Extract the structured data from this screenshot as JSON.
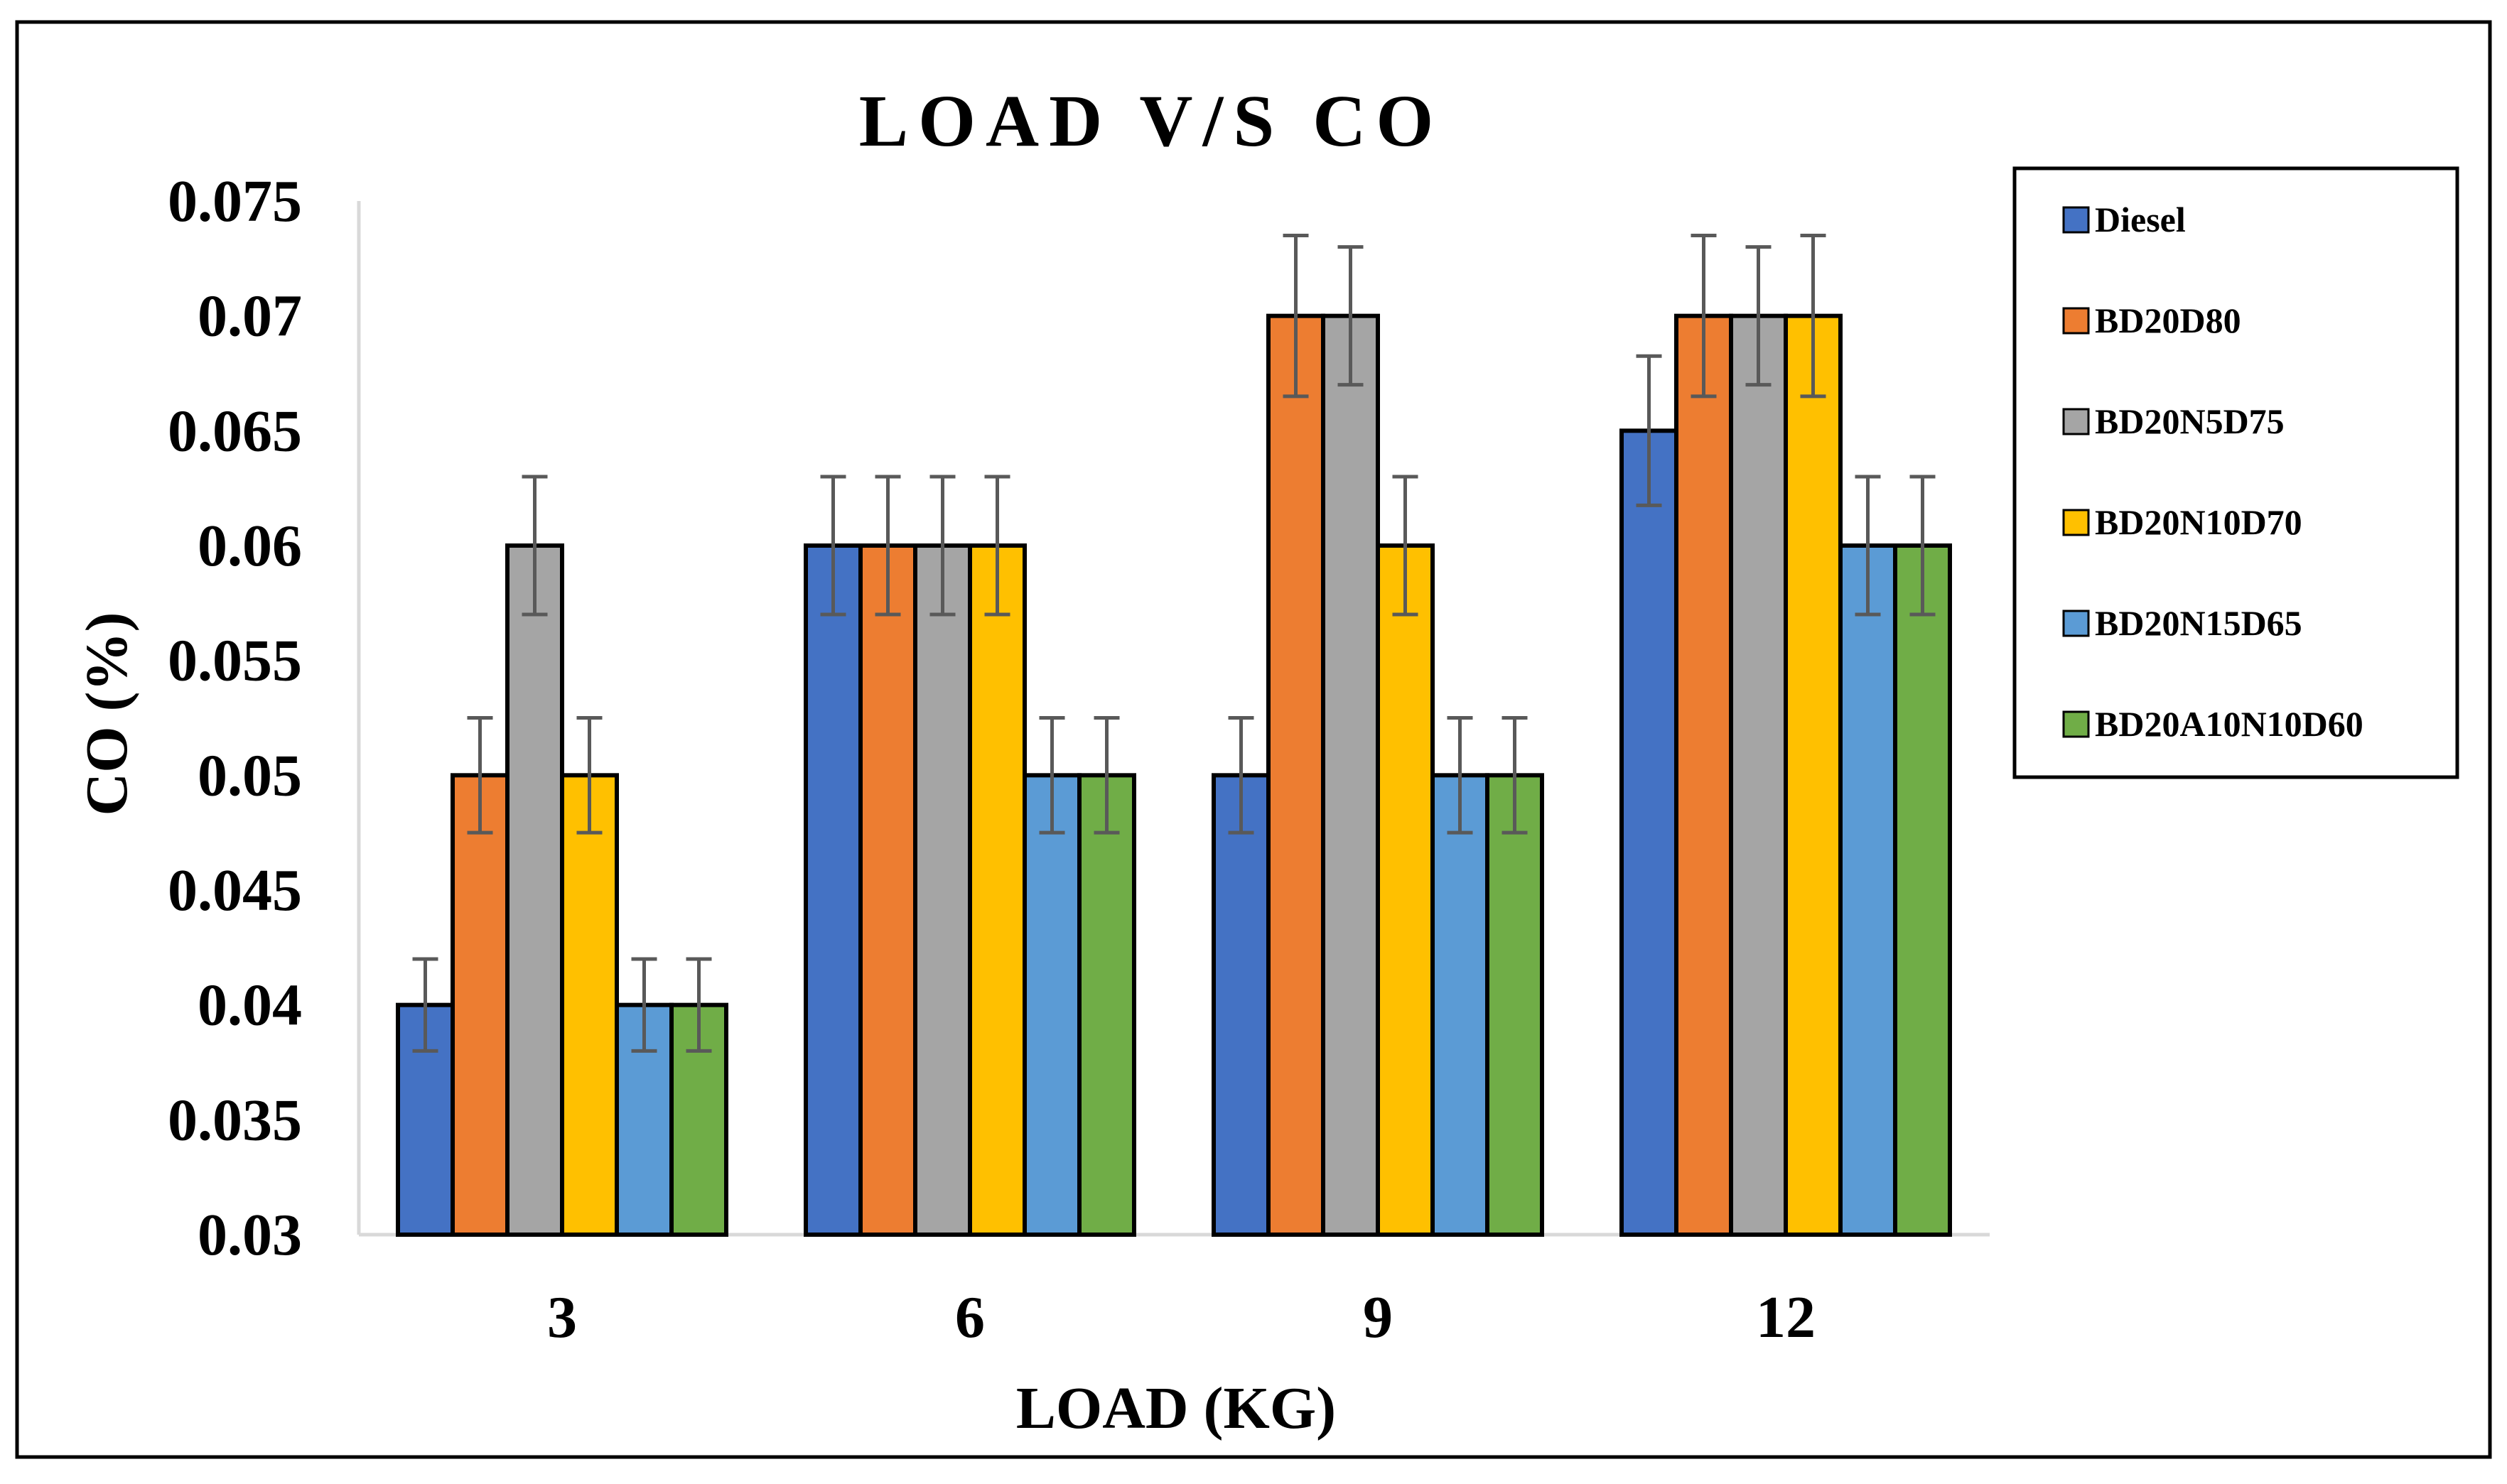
{
  "chart_data": {
    "type": "bar",
    "title": "LOAD V/S CO",
    "xlabel": "LOAD (KG)",
    "ylabel": "CO (%)",
    "ylim": [
      0.03,
      0.075
    ],
    "yticks": [
      "0.03",
      "0.035",
      "0.04",
      "0.045",
      "0.05",
      "0.055",
      "0.06",
      "0.065",
      "0.07",
      "0.075"
    ],
    "categories": [
      "3",
      "6",
      "9",
      "12"
    ],
    "legend_position": "right",
    "series": [
      {
        "name": "Diesel",
        "color": "#4472C4",
        "values": [
          0.04,
          0.06,
          0.05,
          0.065
        ],
        "errors": [
          0.002,
          0.003,
          0.0025,
          0.00325
        ]
      },
      {
        "name": "BD20D80",
        "color": "#ED7D31",
        "values": [
          0.05,
          0.06,
          0.07,
          0.07
        ],
        "errors": [
          0.0025,
          0.003,
          0.0035,
          0.0035
        ]
      },
      {
        "name": "BD20N5D75",
        "color": "#A5A5A5",
        "values": [
          0.06,
          0.06,
          0.07,
          0.07
        ],
        "errors": [
          0.003,
          0.003,
          0.003,
          0.003
        ]
      },
      {
        "name": "BD20N10D70",
        "color": "#FFC000",
        "values": [
          0.05,
          0.06,
          0.06,
          0.07
        ],
        "errors": [
          0.0025,
          0.003,
          0.003,
          0.0035
        ]
      },
      {
        "name": "BD20N15D65",
        "color": "#5B9BD5",
        "values": [
          0.04,
          0.05,
          0.05,
          0.06
        ],
        "errors": [
          0.002,
          0.0025,
          0.0025,
          0.003
        ]
      },
      {
        "name": "BD20A10N10D60",
        "color": "#70AD47",
        "values": [
          0.04,
          0.05,
          0.05,
          0.06
        ],
        "errors": [
          0.002,
          0.0025,
          0.0025,
          0.003
        ]
      }
    ]
  }
}
